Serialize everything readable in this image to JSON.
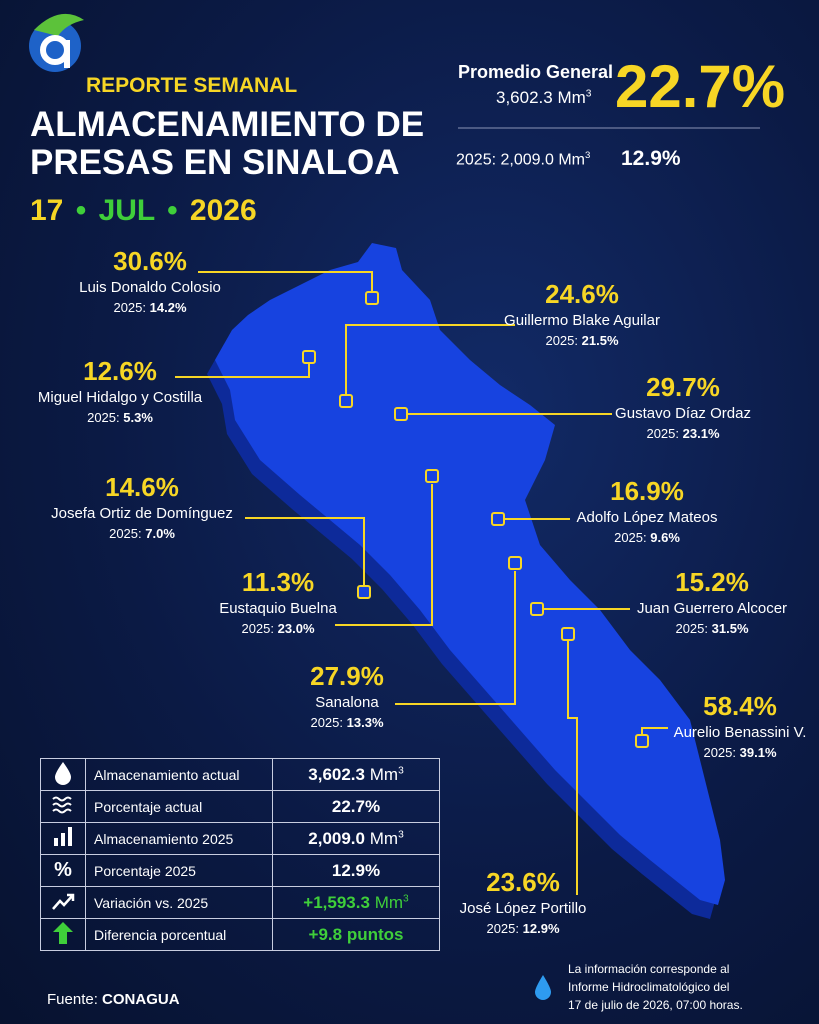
{
  "header": {
    "kicker": "REPORTE SEMANAL",
    "title_lines": [
      "ALMACENAMIENTO DE",
      "PRESAS EN SINALOA"
    ],
    "date": {
      "day": "17",
      "separator": "•",
      "month": "JUL",
      "year": "2026"
    }
  },
  "summary": {
    "label": "Promedio General",
    "volume": "3,602.3",
    "unit": "Mm",
    "unit_sup": "3",
    "percent": "22.7%",
    "previous": {
      "label": "2025: 2,009.0",
      "unit": "Mm",
      "unit_sup": "3",
      "percent": "12.9%"
    }
  },
  "dams": [
    {
      "percent": "30.6%",
      "name": "Luis Donaldo Colosio",
      "previous_label": "2025:",
      "previous": "14.2%"
    },
    {
      "percent": "24.6%",
      "name": "Guillermo Blake Aguilar",
      "previous_label": "2025:",
      "previous": "21.5%"
    },
    {
      "percent": "12.6%",
      "name": "Miguel Hidalgo y Costilla",
      "previous_label": "2025:",
      "previous": "5.3%"
    },
    {
      "percent": "29.7%",
      "name": "Gustavo Díaz Ordaz",
      "previous_label": "2025:",
      "previous": "23.1%"
    },
    {
      "percent": "14.6%",
      "name": "Josefa Ortiz de Domínguez",
      "previous_label": "2025:",
      "previous": "7.0%"
    },
    {
      "percent": "16.9%",
      "name": "Adolfo López Mateos",
      "previous_label": "2025:",
      "previous": "9.6%"
    },
    {
      "percent": "11.3%",
      "name": "Eustaquio Buelna",
      "previous_label": "2025:",
      "previous": "23.0%"
    },
    {
      "percent": "15.2%",
      "name": "Juan Guerrero Alcocer",
      "previous_label": "2025:",
      "previous": "31.5%"
    },
    {
      "percent": "27.9%",
      "name": "Sanalona",
      "previous_label": "2025:",
      "previous": "13.3%"
    },
    {
      "percent": "58.4%",
      "name": "Aurelio Benassini V.",
      "previous_label": "2025:",
      "previous": "39.1%"
    },
    {
      "percent": "23.6%",
      "name": "José López Portillo",
      "previous_label": "2025:",
      "previous": "12.9%"
    }
  ],
  "table": {
    "rows": [
      {
        "label": "Almacenamiento actual",
        "value": "3,602.3",
        "unit": "Mm",
        "unit_sup": "3"
      },
      {
        "label": "Porcentaje actual",
        "value": "22.7%"
      },
      {
        "label": "Almacenamiento 2025",
        "value": "2,009.0",
        "unit": "Mm",
        "unit_sup": "3"
      },
      {
        "label": "Porcentaje 2025",
        "value": "12.9%"
      },
      {
        "label": "Variación vs. 2025",
        "value": "+1,593.3",
        "unit": "Mm",
        "unit_sup": "3"
      },
      {
        "label": "Diferencia porcentual",
        "value": "+9.8 puntos"
      }
    ]
  },
  "source": {
    "label": "Fuente:",
    "name": "CONAGUA"
  },
  "note": [
    "La información corresponde al",
    "Informe Hidroclimatológico del",
    "17 de julio de 2026, 07:00 horas."
  ]
}
